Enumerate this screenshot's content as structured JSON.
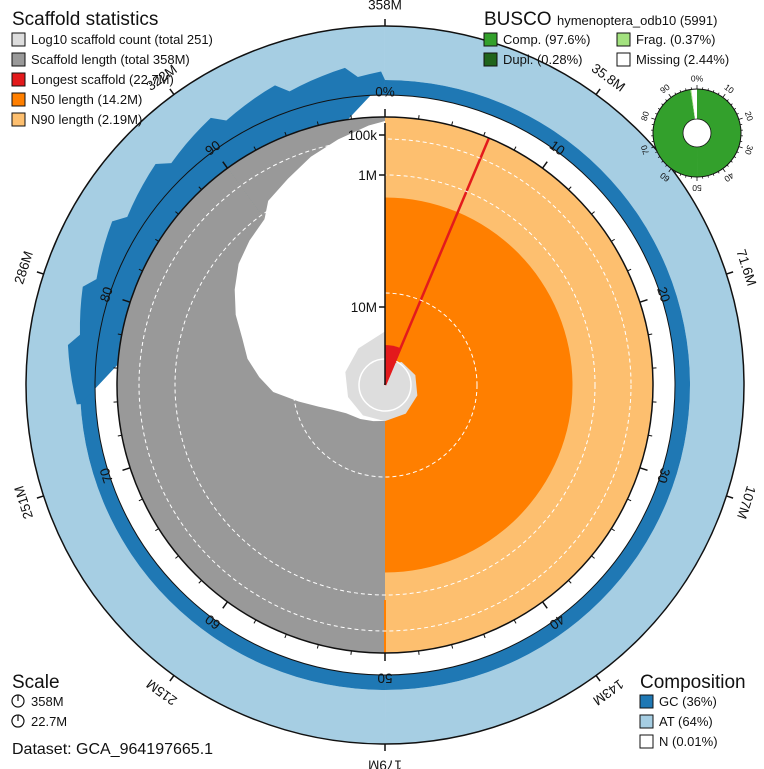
{
  "scaffold_legend": {
    "title": "Scaffold statistics",
    "items": [
      {
        "label": "Log10 scaffold count (total 251)",
        "color": "#dddddd"
      },
      {
        "label": "Scaffold length (total 358M)",
        "color": "#999999"
      },
      {
        "label": "Longest scaffold (22.7M)",
        "color": "#e31a1c"
      },
      {
        "label": "N50 length (14.2M)",
        "color": "#ff7f00"
      },
      {
        "label": "N90 length (2.19M)",
        "color": "#fdbf6f"
      }
    ]
  },
  "busco": {
    "title": "BUSCO",
    "lineage": "hymenoptera_odb10 (5991)",
    "items": [
      {
        "label": "Comp. (97.6%)",
        "color": "#33a02c"
      },
      {
        "label": "Frag. (0.37%)",
        "color": "#a3e27f"
      },
      {
        "label": "Dupl. (0.28%)",
        "color": "#20641c"
      },
      {
        "label": "Missing (2.44%)",
        "color": "#ffffff"
      }
    ],
    "ticks": [
      "0%",
      "10",
      "20",
      "30",
      "40",
      "50",
      "60",
      "70",
      "80",
      "90"
    ]
  },
  "scale": {
    "title": "Scale",
    "items": [
      {
        "label": "358M"
      },
      {
        "label": "22.7M"
      }
    ]
  },
  "composition": {
    "title": "Composition",
    "items": [
      {
        "label": "GC (36%)",
        "color": "#1f78b4"
      },
      {
        "label": "AT (64%)",
        "color": "#a6cee3"
      },
      {
        "label": "N (0.01%)",
        "color": "#ffffff"
      }
    ]
  },
  "dataset": {
    "label": "Dataset: GCA_964197665.1"
  },
  "chart_data": {
    "type": "snail",
    "total_length": 358000000,
    "scaffold_count": 251,
    "longest_scaffold": 22700000,
    "n50": 14200000,
    "n90": 2190000,
    "gc_percent": 36,
    "at_percent": 64,
    "n_percent": 0.01,
    "outer_tick_labels": [
      "358M",
      "35.8M",
      "71.6M",
      "107M",
      "143M",
      "179M",
      "215M",
      "251M",
      "286M",
      "322M"
    ],
    "percent_tick_labels": [
      "0%",
      "10",
      "20",
      "30",
      "40",
      "50",
      "60",
      "70",
      "80",
      "90"
    ],
    "radial_scale_labels": [
      "100k",
      "1M",
      "10M"
    ],
    "radial_scale_values": [
      100000,
      1000000,
      10000000
    ],
    "n90_percent": 90,
    "scaffold_length_curve": [
      {
        "percent": 0,
        "length": 22700000
      },
      {
        "percent": 2,
        "length": 21000000
      },
      {
        "percent": 4,
        "length": 19500000
      },
      {
        "percent": 6,
        "length": 18500000
      },
      {
        "percent": 8,
        "length": 17800000
      },
      {
        "percent": 10,
        "length": 17200000
      },
      {
        "percent": 13,
        "length": 16600000
      },
      {
        "percent": 16,
        "length": 16100000
      },
      {
        "percent": 20,
        "length": 15600000
      },
      {
        "percent": 25,
        "length": 15200000
      },
      {
        "percent": 30,
        "length": 14900000
      },
      {
        "percent": 35,
        "length": 14700000
      },
      {
        "percent": 40,
        "length": 14500000
      },
      {
        "percent": 45,
        "length": 14300000
      },
      {
        "percent": 50,
        "length": 14200000
      },
      {
        "percent": 55,
        "length": 13400000
      },
      {
        "percent": 60,
        "length": 12200000
      },
      {
        "percent": 63,
        "length": 11000000
      },
      {
        "percent": 66,
        "length": 9800000
      },
      {
        "percent": 69,
        "length": 8300000
      },
      {
        "percent": 72,
        "length": 7000000
      },
      {
        "percent": 75,
        "length": 6000000
      },
      {
        "percent": 78,
        "length": 4800000
      },
      {
        "percent": 81,
        "length": 3900000
      },
      {
        "percent": 84,
        "length": 3200000
      },
      {
        "percent": 87,
        "length": 2700000
      },
      {
        "percent": 90,
        "length": 2190000
      },
      {
        "percent": 92,
        "length": 1500000
      },
      {
        "percent": 94,
        "length": 900000
      },
      {
        "percent": 96,
        "length": 500000
      },
      {
        "percent": 98,
        "length": 250000
      },
      {
        "percent": 100,
        "length": 100000
      }
    ],
    "log_count_curve": [
      {
        "percent": 0,
        "value": 0.0
      },
      {
        "percent": 10,
        "value": 0.6
      },
      {
        "percent": 20,
        "value": 0.85
      },
      {
        "percent": 30,
        "value": 1.0
      },
      {
        "percent": 40,
        "value": 1.1
      },
      {
        "percent": 50,
        "value": 1.15
      },
      {
        "percent": 60,
        "value": 1.25
      },
      {
        "percent": 70,
        "value": 1.35
      },
      {
        "percent": 80,
        "value": 1.55
      },
      {
        "percent": 90,
        "value": 1.8
      },
      {
        "percent": 100,
        "value": 2.4
      }
    ]
  }
}
